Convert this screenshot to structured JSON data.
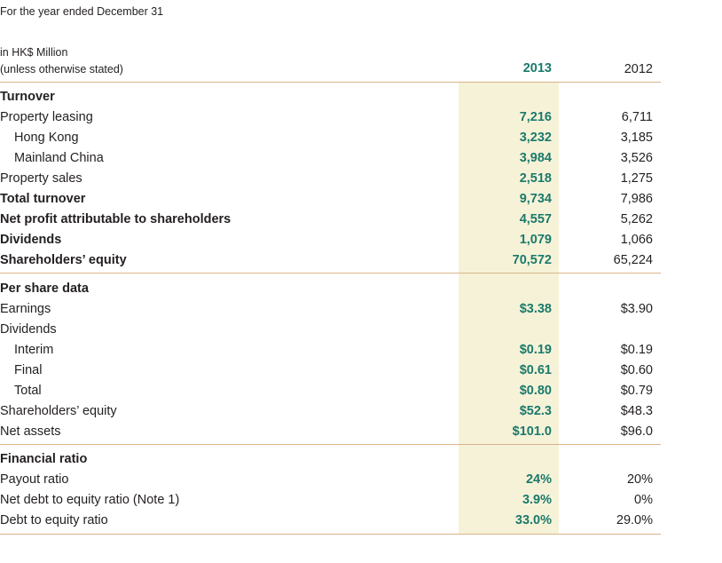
{
  "header": {
    "caption": "For the year ended December 31",
    "units_line1": "in HK$ Million",
    "units_line2": "(unless otherwise stated)",
    "year_current": "2013",
    "year_prior": "2012"
  },
  "sections": [
    {
      "rows": [
        {
          "label": "Turnover",
          "style": "heading",
          "v2013": "",
          "v2012": ""
        },
        {
          "label": "Property leasing",
          "style": "normal",
          "v2013": "7,216",
          "v2012": "6,711"
        },
        {
          "label": "Hong Kong",
          "style": "indent",
          "v2013": "3,232",
          "v2012": "3,185"
        },
        {
          "label": "Mainland China",
          "style": "indent",
          "v2013": "3,984",
          "v2012": "3,526"
        },
        {
          "label": "Property sales",
          "style": "normal",
          "v2013": "2,518",
          "v2012": "1,275"
        },
        {
          "label": "Total turnover",
          "style": "bold",
          "v2013": "9,734",
          "v2012": "7,986"
        },
        {
          "label": "Net profit attributable to shareholders",
          "style": "bold",
          "v2013": "4,557",
          "v2012": "5,262"
        },
        {
          "label": "Dividends",
          "style": "bold",
          "v2013": "1,079",
          "v2012": "1,066"
        },
        {
          "label": "Shareholders’ equity",
          "style": "bold",
          "v2013": "70,572",
          "v2012": "65,224"
        }
      ]
    },
    {
      "rows": [
        {
          "label": "Per share data",
          "style": "heading",
          "v2013": "",
          "v2012": ""
        },
        {
          "label": "Earnings",
          "style": "normal",
          "v2013": "$3.38",
          "v2012": "$3.90"
        },
        {
          "label": "Dividends",
          "style": "normal",
          "v2013": "",
          "v2012": ""
        },
        {
          "label": "Interim",
          "style": "indent",
          "v2013": "$0.19",
          "v2012": "$0.19"
        },
        {
          "label": "Final",
          "style": "indent",
          "v2013": "$0.61",
          "v2012": "$0.60"
        },
        {
          "label": "Total",
          "style": "indent",
          "v2013": "$0.80",
          "v2012": "$0.79"
        },
        {
          "label": "Shareholders’ equity",
          "style": "normal",
          "v2013": "$52.3",
          "v2012": "$48.3"
        },
        {
          "label": "Net assets",
          "style": "normal",
          "v2013": "$101.0",
          "v2012": "$96.0"
        }
      ]
    },
    {
      "rows": [
        {
          "label": "Financial ratio",
          "style": "heading",
          "v2013": "",
          "v2012": ""
        },
        {
          "label": "Payout ratio",
          "style": "normal",
          "v2013": "24%",
          "v2012": "20%"
        },
        {
          "label": "Net debt to equity ratio (Note 1)",
          "style": "normal",
          "v2013": "3.9%",
          "v2012": "0%"
        },
        {
          "label": "Debt to equity ratio",
          "style": "normal",
          "v2013": "33.0%",
          "v2012": "29.0%"
        }
      ]
    }
  ]
}
